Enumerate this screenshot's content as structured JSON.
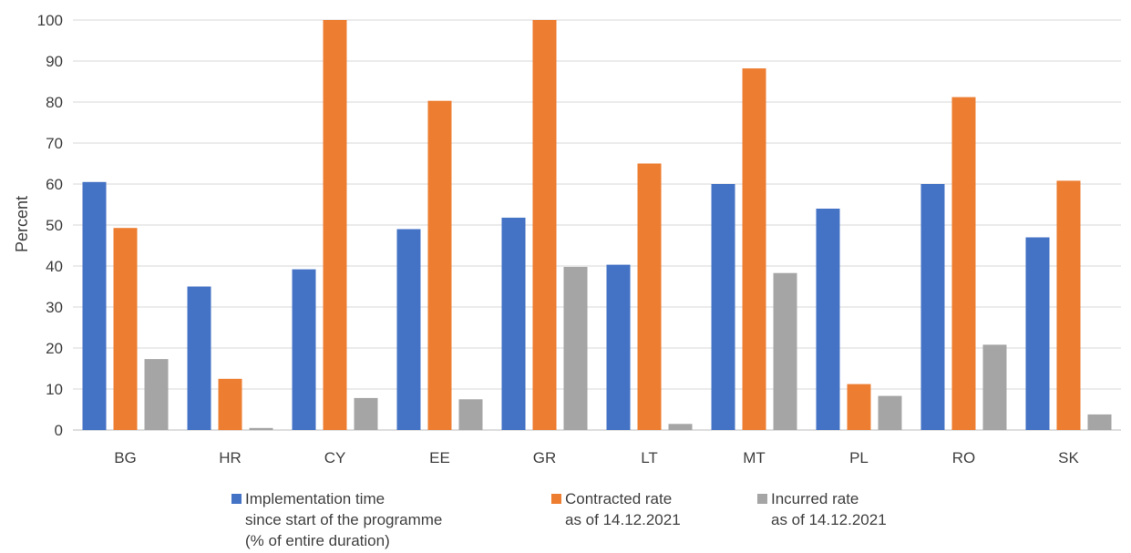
{
  "chart_data": {
    "type": "bar",
    "ylabel": "Percent",
    "ylim": [
      0,
      100
    ],
    "yticks": [
      0,
      10,
      20,
      30,
      40,
      50,
      60,
      70,
      80,
      90,
      100
    ],
    "grid": true,
    "legend_position": "bottom",
    "categories": [
      "BG",
      "HR",
      "CY",
      "EE",
      "GR",
      "LT",
      "MT",
      "PL",
      "RO",
      "SK"
    ],
    "series": [
      {
        "name": "Implementation time since start of the programme (% of entire duration)",
        "name_lines": [
          "Implementation time",
          "since start of the programme",
          "(% of entire duration)"
        ],
        "color": "#4472C4",
        "values": [
          60.5,
          35,
          39.2,
          49,
          51.8,
          40.3,
          60,
          54,
          60,
          47
        ]
      },
      {
        "name": "Contracted rate as of 14.12.2021",
        "name_lines": [
          "Contracted rate",
          "as of 14.12.2021"
        ],
        "color": "#ED7D31",
        "values": [
          49.3,
          12.5,
          100,
          80.3,
          100,
          65,
          88.2,
          11.2,
          81.2,
          60.8
        ]
      },
      {
        "name": "Incurred rate as of 14.12.2021",
        "name_lines": [
          "Incurred rate",
          "as of 14.12.2021"
        ],
        "color": "#A5A5A5",
        "values": [
          17.3,
          0.5,
          7.8,
          7.5,
          39.8,
          1.5,
          38.3,
          8.3,
          20.8,
          3.8
        ]
      }
    ]
  }
}
